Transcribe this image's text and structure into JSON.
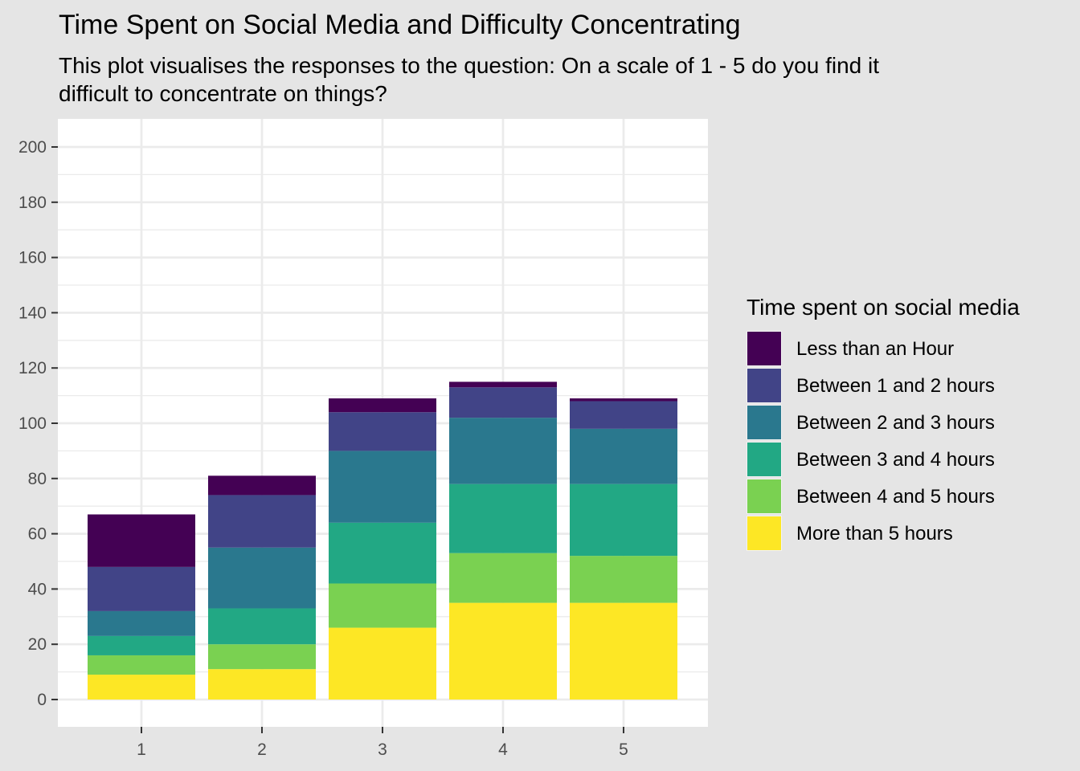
{
  "chart_data": {
    "type": "bar",
    "stacked": true,
    "title": "Time Spent on Social Media and Difficulty Concentrating",
    "subtitle": "This plot visualises the responses to the question: On a scale of 1 - 5 do you find it difficult to concentrate on things?",
    "xlabel": "",
    "ylabel": "",
    "categories": [
      "1",
      "2",
      "3",
      "4",
      "5"
    ],
    "ylim": [
      -10,
      210
    ],
    "y_ticks": [
      0,
      20,
      40,
      60,
      80,
      100,
      120,
      140,
      160,
      180,
      200
    ],
    "grid": true,
    "legend": {
      "title": "Time spent on social media",
      "position": "right"
    },
    "series": [
      {
        "name": "Less than an Hour",
        "color": "#440154",
        "values": [
          19,
          7,
          5,
          2,
          1
        ]
      },
      {
        "name": "Between 1 and 2 hours",
        "color": "#414487",
        "values": [
          16,
          19,
          14,
          11,
          10
        ]
      },
      {
        "name": "Between 2 and 3 hours",
        "color": "#2a788e",
        "values": [
          9,
          22,
          26,
          24,
          20
        ]
      },
      {
        "name": "Between 3 and 4 hours",
        "color": "#22a884",
        "values": [
          7,
          13,
          22,
          25,
          26
        ]
      },
      {
        "name": "Between 4 and 5 hours",
        "color": "#7ad151",
        "values": [
          7,
          9,
          16,
          18,
          17
        ]
      },
      {
        "name": "More than 5 hours",
        "color": "#fde725",
        "values": [
          9,
          11,
          26,
          35,
          35
        ]
      }
    ]
  }
}
